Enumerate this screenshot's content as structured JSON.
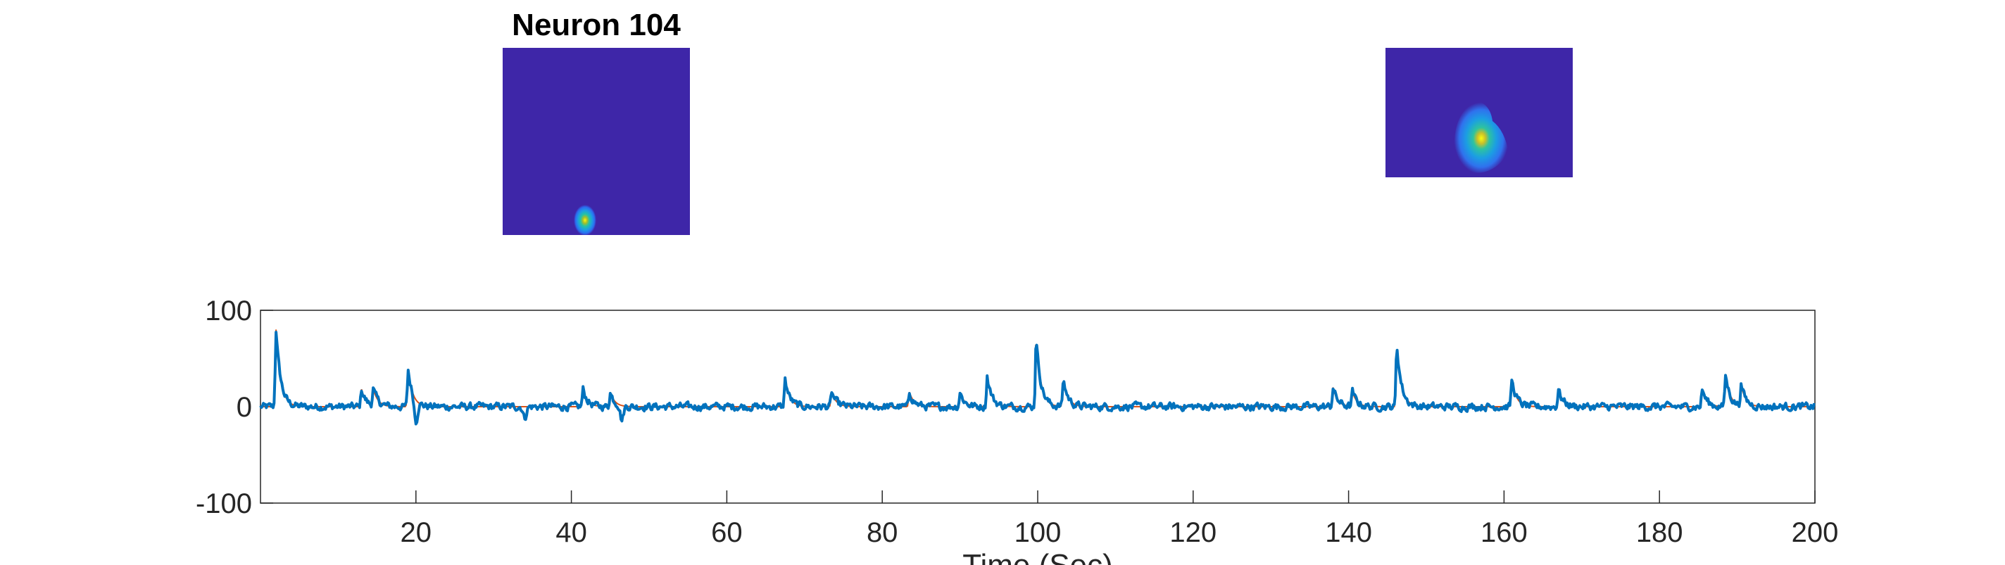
{
  "title": "Neuron 104",
  "colors": {
    "panel_background": "#3e26a8",
    "trace": "#0072bd",
    "fit": "#d95319",
    "axis": "#262626"
  },
  "chart_data": [
    {
      "type": "heatmap",
      "title": "Neuron 104",
      "colormap": "parula",
      "description_of_marks": "spatial footprint: single blob near bottom-center",
      "blob": {
        "cx": 0.44,
        "cy": 0.92,
        "peak": 1.0
      }
    },
    {
      "type": "heatmap",
      "title": "",
      "colormap": "parula",
      "blob": {
        "cx": 0.5,
        "cy": 0.68,
        "peak": 1.0
      }
    },
    {
      "type": "line",
      "xlabel": "Time (Sec)",
      "ylabel": "",
      "xlim": [
        0,
        200
      ],
      "ylim": [
        -100,
        100
      ],
      "xticks": [
        20,
        40,
        60,
        80,
        100,
        120,
        140,
        160,
        180,
        200
      ],
      "yticks": [
        100,
        0,
        -100
      ],
      "grid": false,
      "series": [
        {
          "name": "",
          "style": "trace"
        },
        {
          "name": "",
          "style": "fit"
        }
      ],
      "peaks": [
        {
          "t": 2,
          "v": 80
        },
        {
          "t": 13,
          "v": 18
        },
        {
          "t": 14.5,
          "v": 18
        },
        {
          "t": 19,
          "v": 38
        },
        {
          "t": 41.5,
          "v": 18
        },
        {
          "t": 45,
          "v": 15
        },
        {
          "t": 67.5,
          "v": 28
        },
        {
          "t": 73.5,
          "v": 15
        },
        {
          "t": 83.5,
          "v": 15
        },
        {
          "t": 90,
          "v": 15
        },
        {
          "t": 93.5,
          "v": 32
        },
        {
          "t": 99.8,
          "v": 72
        },
        {
          "t": 103.3,
          "v": 28
        },
        {
          "t": 138,
          "v": 20
        },
        {
          "t": 140.5,
          "v": 15
        },
        {
          "t": 146.2,
          "v": 65
        },
        {
          "t": 161,
          "v": 28
        },
        {
          "t": 167,
          "v": 18
        },
        {
          "t": 185.5,
          "v": 18
        },
        {
          "t": 188.5,
          "v": 33
        },
        {
          "t": 190.5,
          "v": 22
        }
      ],
      "dips": [
        {
          "t": 20,
          "v": -22
        },
        {
          "t": 34,
          "v": -12
        },
        {
          "t": 46.5,
          "v": -15
        }
      ]
    }
  ]
}
